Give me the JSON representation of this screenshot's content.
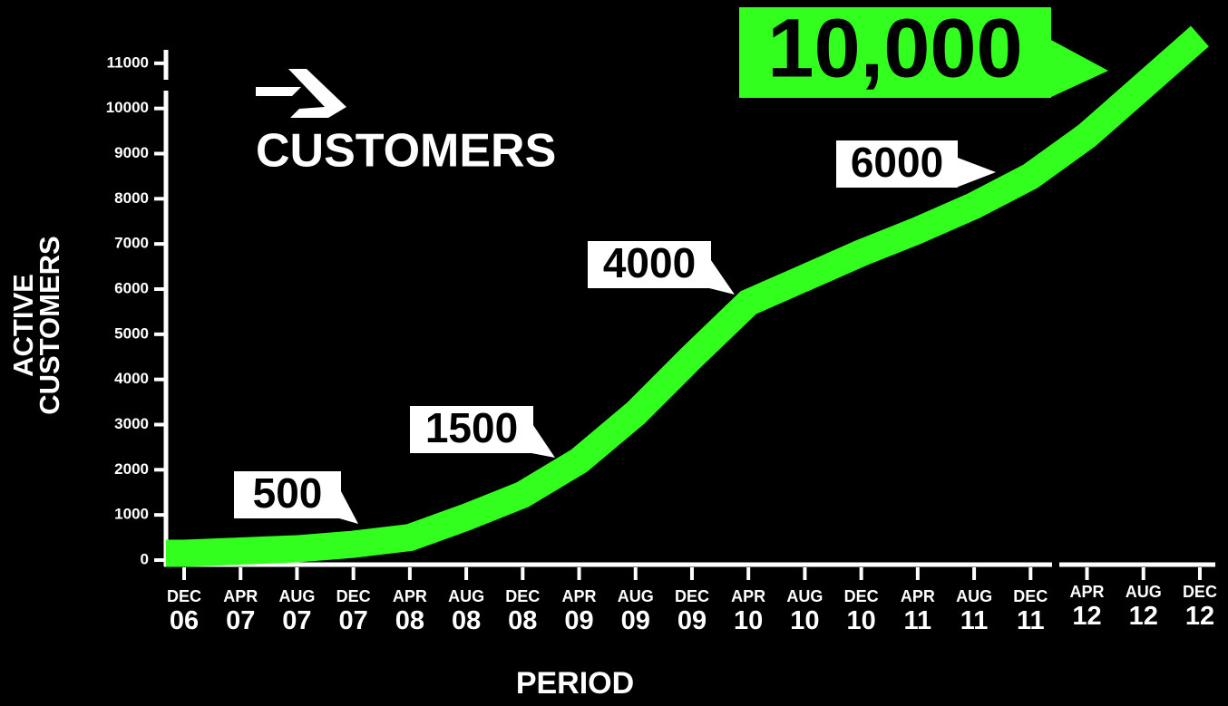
{
  "chart_data": {
    "type": "line",
    "title": "CUSTOMERS",
    "ylabel": "ACTIVE CUSTOMERS",
    "xlabel": "PERIOD",
    "categories": [
      "DEC 06",
      "APR 07",
      "AUG 07",
      "DEC 07",
      "APR 08",
      "AUG 08",
      "DEC 08",
      "APR 09",
      "AUG 09",
      "DEC 09",
      "APR 10",
      "AUG 10",
      "DEC 10",
      "APR 11",
      "AUG 11",
      "DEC 11",
      "APR 12",
      "AUG 12",
      "DEC 12"
    ],
    "values": [
      150,
      200,
      250,
      350,
      500,
      950,
      1450,
      2200,
      3250,
      4500,
      5700,
      6250,
      6800,
      7300,
      7850,
      8500,
      9400,
      10500,
      11600
    ],
    "color": "#33ff1f",
    "ylim": [
      0,
      12000
    ],
    "yticks": [
      0,
      1000,
      2000,
      3000,
      4000,
      5000,
      6000,
      7000,
      8000,
      9000,
      10000,
      11000
    ],
    "annotations": [
      "500",
      "1500",
      "4000",
      "6000",
      "10,000"
    ]
  }
}
